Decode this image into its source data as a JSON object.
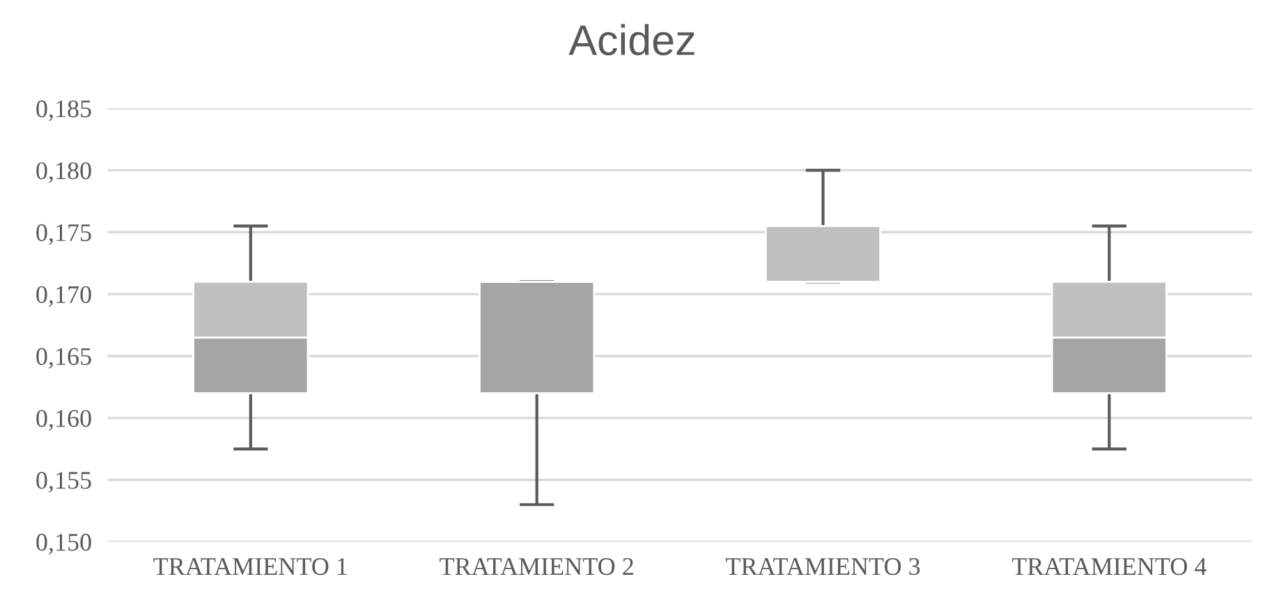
{
  "chart_data": {
    "type": "box",
    "title": "Acidez",
    "categories": [
      "TRATAMIENTO 1",
      "TRATAMIENTO 2",
      "TRATAMIENTO 3",
      "TRATAMIENTO 4"
    ],
    "boxes": [
      {
        "low": 0.1575,
        "q1": 0.162,
        "median": 0.1665,
        "q3": 0.171,
        "high": 0.1755
      },
      {
        "low": 0.153,
        "q1": 0.162,
        "median": 0.171,
        "q3": 0.171,
        "high": 0.171
      },
      {
        "low": 0.171,
        "q1": 0.171,
        "median": 0.171,
        "q3": 0.1755,
        "high": 0.18
      },
      {
        "low": 0.1575,
        "q1": 0.162,
        "median": 0.1665,
        "q3": 0.171,
        "high": 0.1755
      }
    ],
    "colors": [
      [
        "#a5a5a5",
        "#bfbfbf"
      ],
      [
        "#a5a5a5",
        "#bfbfbf"
      ],
      [
        "#a5a5a5",
        "#bfbfbf"
      ],
      [
        "#a5a5a5",
        "#bfbfbf"
      ]
    ],
    "ylim": [
      0.15,
      0.185
    ],
    "yticks": [
      {
        "value": 0.15,
        "label": "0,150"
      },
      {
        "value": 0.155,
        "label": "0,155"
      },
      {
        "value": 0.16,
        "label": "0,160"
      },
      {
        "value": 0.165,
        "label": "0,165"
      },
      {
        "value": 0.17,
        "label": "0,170"
      },
      {
        "value": 0.175,
        "label": "0,175"
      },
      {
        "value": 0.18,
        "label": "0,180"
      },
      {
        "value": 0.185,
        "label": "0,185"
      }
    ],
    "grid": "y"
  }
}
